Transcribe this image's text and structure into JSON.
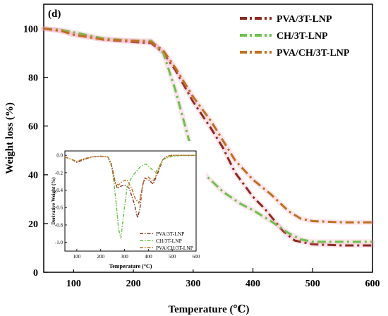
{
  "panel_label": "(d)",
  "chart_data": [
    {
      "type": "line",
      "xlabel": "Temperature (℃)",
      "ylabel": "Weight loss (%)",
      "xlim": [
        50,
        600
      ],
      "ylim": [
        0,
        110
      ],
      "xticks": [
        100,
        200,
        300,
        400,
        500,
        600
      ],
      "yticks": [
        0,
        20,
        40,
        60,
        80,
        100
      ],
      "grid": false,
      "legend_position": "top-right",
      "series": [
        {
          "name": "PVA/3T-LNP",
          "color": "#8b2a1e",
          "x": [
            50,
            80,
            100,
            150,
            200,
            230,
            250,
            270,
            300,
            330,
            350,
            370,
            400,
            420,
            450,
            470,
            500,
            550,
            600
          ],
          "y": [
            100,
            99,
            97.5,
            95.5,
            94.5,
            94,
            90,
            83,
            70,
            59,
            51,
            41,
            31,
            26,
            17,
            13,
            11.5,
            11,
            11
          ]
        },
        {
          "name": "CH/3T-LNP",
          "color": "#6cc04a",
          "x": [
            50,
            80,
            100,
            150,
            200,
            230,
            250,
            270,
            290,
            300,
            320,
            350,
            380,
            400,
            430,
            460,
            480,
            500,
            550,
            600
          ],
          "y": [
            100,
            99.5,
            98.5,
            96,
            95,
            95,
            90,
            75,
            57,
            48,
            40,
            33,
            28,
            25.5,
            21,
            16,
            13.5,
            12.5,
            12.5,
            12.5
          ]
        },
        {
          "name": "PVA/CH/3T-LNP",
          "color": "#c0701e",
          "x": [
            50,
            80,
            100,
            150,
            200,
            230,
            250,
            270,
            300,
            330,
            350,
            370,
            400,
            430,
            460,
            480,
            500,
            550,
            600
          ],
          "y": [
            100,
            99,
            97.5,
            95.5,
            95,
            94.5,
            91,
            84,
            72,
            62,
            54,
            46,
            38,
            32,
            25,
            22,
            21,
            20.5,
            20.5
          ]
        }
      ]
    },
    {
      "type": "line",
      "xlabel": "Temperature (°C)",
      "ylabel": "Derivative Weight (%)",
      "xlim": [
        50,
        600
      ],
      "ylim": [
        -1.1,
        0.05
      ],
      "xticks": [
        100,
        200,
        300,
        400,
        500,
        600
      ],
      "yticks": [
        0.0,
        -0.2,
        -0.4,
        -0.6,
        -0.8,
        -1.0
      ],
      "legend_position": "bottom-right",
      "series": [
        {
          "name": "PVA/3T-LNP",
          "color": "#8b2a1e",
          "x": [
            50,
            80,
            100,
            130,
            160,
            200,
            230,
            245,
            260,
            270,
            280,
            300,
            320,
            340,
            355,
            365,
            375,
            385,
            400,
            420,
            440,
            460,
            480,
            500,
            550,
            600
          ],
          "y": [
            -0.02,
            -0.05,
            -0.08,
            -0.05,
            -0.02,
            -0.01,
            -0.02,
            -0.1,
            -0.3,
            -0.38,
            -0.36,
            -0.34,
            -0.38,
            -0.55,
            -0.72,
            -0.6,
            -0.35,
            -0.26,
            -0.28,
            -0.33,
            -0.2,
            -0.05,
            -0.01,
            0,
            0,
            0
          ]
        },
        {
          "name": "CH/3T-LNP",
          "color": "#6cc04a",
          "x": [
            50,
            80,
            100,
            130,
            160,
            200,
            230,
            245,
            255,
            265,
            275,
            285,
            295,
            310,
            330,
            350,
            370,
            390,
            410,
            430,
            460,
            500,
            550,
            600
          ],
          "y": [
            -0.02,
            -0.05,
            -0.07,
            -0.04,
            -0.02,
            -0.01,
            -0.02,
            -0.1,
            -0.3,
            -0.55,
            -0.85,
            -0.95,
            -0.7,
            -0.38,
            -0.25,
            -0.18,
            -0.12,
            -0.1,
            -0.15,
            -0.2,
            -0.05,
            -0.01,
            0,
            0
          ]
        },
        {
          "name": "PVA/CH/3T-LNP",
          "color": "#c0701e",
          "x": [
            50,
            80,
            100,
            130,
            160,
            200,
            230,
            245,
            260,
            275,
            290,
            310,
            330,
            345,
            360,
            380,
            400,
            420,
            440,
            460,
            480,
            500,
            550,
            600
          ],
          "y": [
            -0.02,
            -0.05,
            -0.07,
            -0.04,
            -0.02,
            -0.01,
            -0.02,
            -0.12,
            -0.32,
            -0.34,
            -0.3,
            -0.28,
            -0.38,
            -0.5,
            -0.55,
            -0.3,
            -0.25,
            -0.3,
            -0.18,
            -0.05,
            -0.01,
            0,
            0,
            0
          ]
        }
      ]
    }
  ]
}
